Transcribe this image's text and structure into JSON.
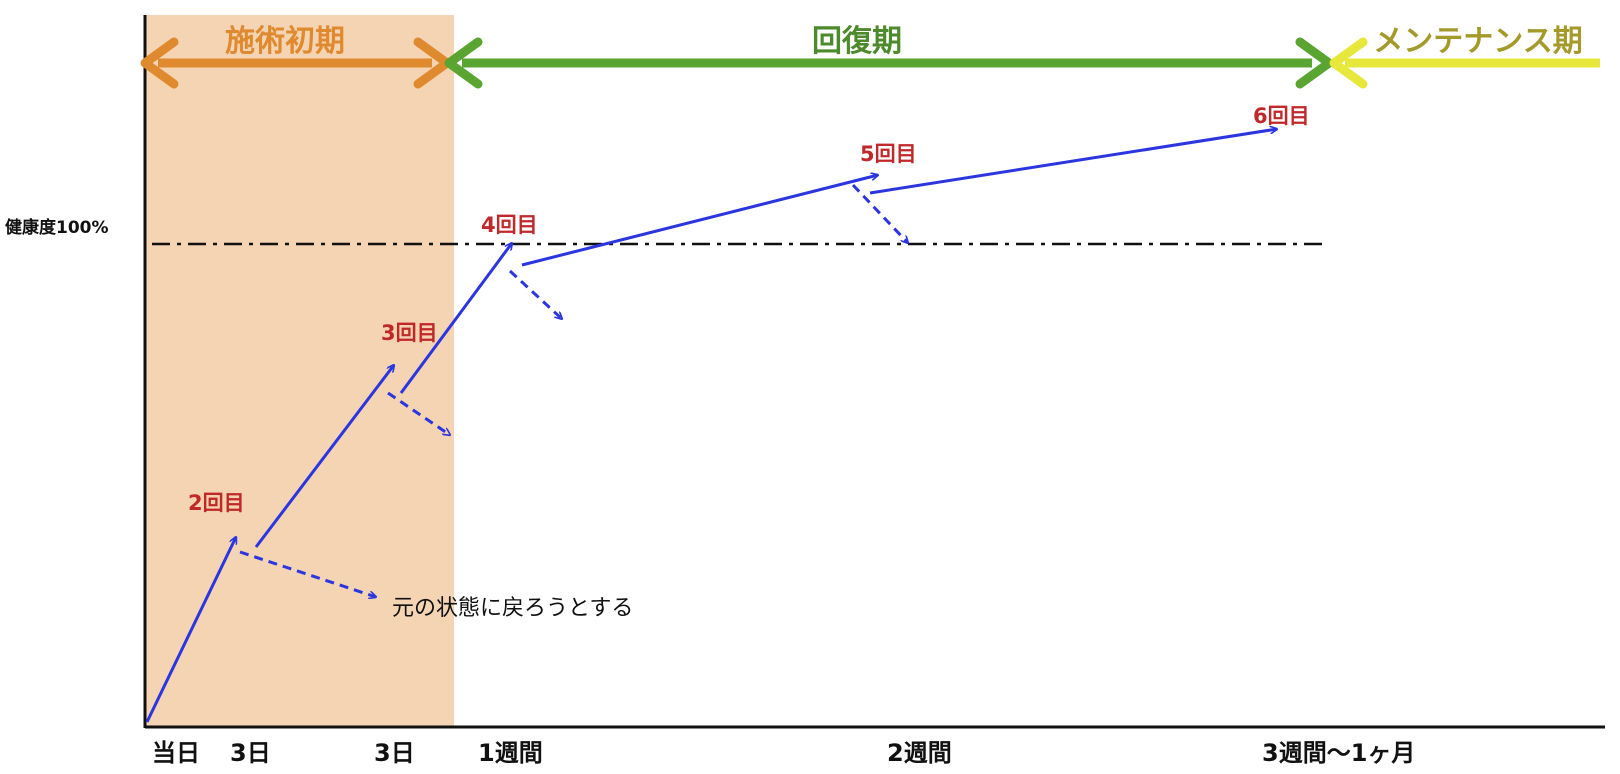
{
  "colors": {
    "initial_phase": "#e08a2f",
    "initial_shade": "#f5d4b3",
    "recovery_phase": "#5aa531",
    "recovery_text": "#4d8a2b",
    "maintenance_phase": "#e8e83c",
    "maintenance_text": "#a39a2a",
    "progress_arrow": "#2b35e0",
    "count_label": "#c0282a",
    "axis": "#111111"
  },
  "phases": {
    "initial": "施術初期",
    "recovery": "回復期",
    "maintenance": "メンテナンス期"
  },
  "baseline_label": "健康度100%",
  "visits": {
    "v2": "2回目",
    "v3": "3回目",
    "v4": "4回目",
    "v5": "5回目",
    "v6": "6回目"
  },
  "note": "元の状態に戻ろうとする",
  "x_axis": {
    "t0": "当日",
    "t1": "3日",
    "t2": "3日",
    "t3": "1週間",
    "t4": "2週間",
    "t5": "3週間〜1ヶ月"
  }
}
